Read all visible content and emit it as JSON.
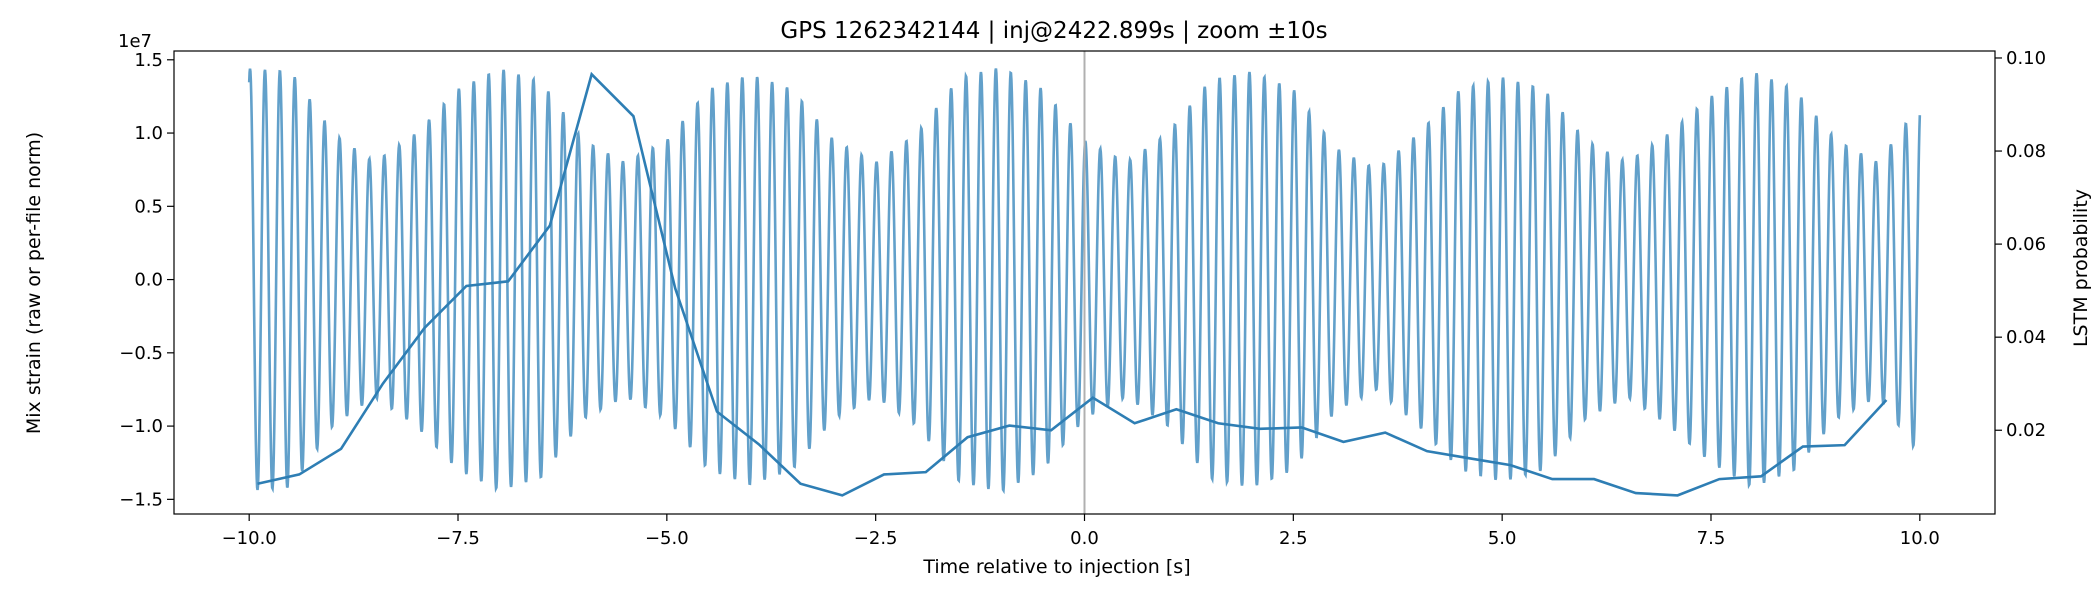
{
  "chart_data": {
    "type": "line",
    "title": "GPS 1262342144 | inj@2422.899s | zoom ±10s",
    "xlabel": "Time relative to injection [s]",
    "ylabel_left": "Mix strain (raw or per-file norm)",
    "ylabel_right": "LSTM probability",
    "left_offset_label": "1e7",
    "xlim": [
      -10.9,
      10.9
    ],
    "ylim_left": [
      -1.6,
      1.56
    ],
    "ylim_right": [
      0.002,
      0.1015
    ],
    "x_ticks": [
      -10.0,
      -7.5,
      -5.0,
      -2.5,
      0.0,
      2.5,
      5.0,
      7.5,
      10.0
    ],
    "x_tick_labels": [
      "−10.0",
      "−7.5",
      "−5.0",
      "−2.5",
      "0.0",
      "2.5",
      "5.0",
      "7.5",
      "10.0"
    ],
    "y_left_ticks": [
      -1.5,
      -1.0,
      -0.5,
      0.0,
      0.5,
      1.0,
      1.5
    ],
    "y_left_tick_labels": [
      "−1.5",
      "−1.0",
      "−0.5",
      "0.0",
      "0.5",
      "1.0",
      "1.5"
    ],
    "y_right_ticks": [
      0.02,
      0.04,
      0.06,
      0.08,
      0.1
    ],
    "y_right_tick_labels": [
      "0.02",
      "0.04",
      "0.06",
      "0.08",
      "0.10"
    ],
    "vline_x": 0.0,
    "grid": false,
    "colors": {
      "series": "#2e7eb4",
      "strain": "#5a9bc7",
      "vline": "#b0b0b0"
    },
    "strain": {
      "x_range": [
        -10.0,
        10.0
      ],
      "carrier_cycles_per_s": 5.6,
      "envelope_max": [
        1.44,
        1.42,
        1.0,
        0.8,
        1.0,
        1.3,
        1.44,
        1.35,
        0.95,
        0.8,
        0.95,
        1.3,
        1.4,
        1.3,
        0.95,
        0.8,
        1.0,
        1.38,
        1.45,
        1.3,
        0.95,
        0.8,
        1.0,
        1.36,
        1.42,
        1.3,
        0.9,
        0.75,
        1.0,
        1.3,
        1.38,
        1.3,
        0.95,
        0.8,
        1.0,
        1.25,
        1.42,
        1.3,
        0.95,
        0.8,
        1.2
      ]
    },
    "series": [
      {
        "x": [
          -9.9,
          -9.4,
          -8.9,
          -8.4,
          -7.9,
          -7.4,
          -6.9,
          -6.4,
          -5.9,
          -5.4,
          -4.9,
          -4.4,
          -3.9,
          -3.4,
          -2.9,
          -2.4,
          -1.9,
          -1.4,
          -0.9,
          -0.4,
          0.1,
          0.6,
          1.1,
          1.6,
          2.1,
          2.6,
          3.1,
          3.6,
          4.1,
          4.6,
          5.1,
          5.6,
          6.1,
          6.6,
          7.1,
          7.6,
          8.1,
          8.6,
          9.1,
          9.6
        ],
        "y": [
          0.0085,
          0.0105,
          0.016,
          0.03,
          0.042,
          0.051,
          0.052,
          0.064,
          0.0965,
          0.0875,
          0.0505,
          0.024,
          0.017,
          0.0085,
          0.006,
          0.0105,
          0.011,
          0.0185,
          0.021,
          0.02,
          0.027,
          0.0215,
          0.0245,
          0.0215,
          0.0203,
          0.0206,
          0.0175,
          0.0195,
          0.0155,
          0.014,
          0.0125,
          0.0095,
          0.0095,
          0.0065,
          0.006,
          0.0095,
          0.0101,
          0.0165,
          0.0168,
          0.0265
        ]
      }
    ]
  }
}
